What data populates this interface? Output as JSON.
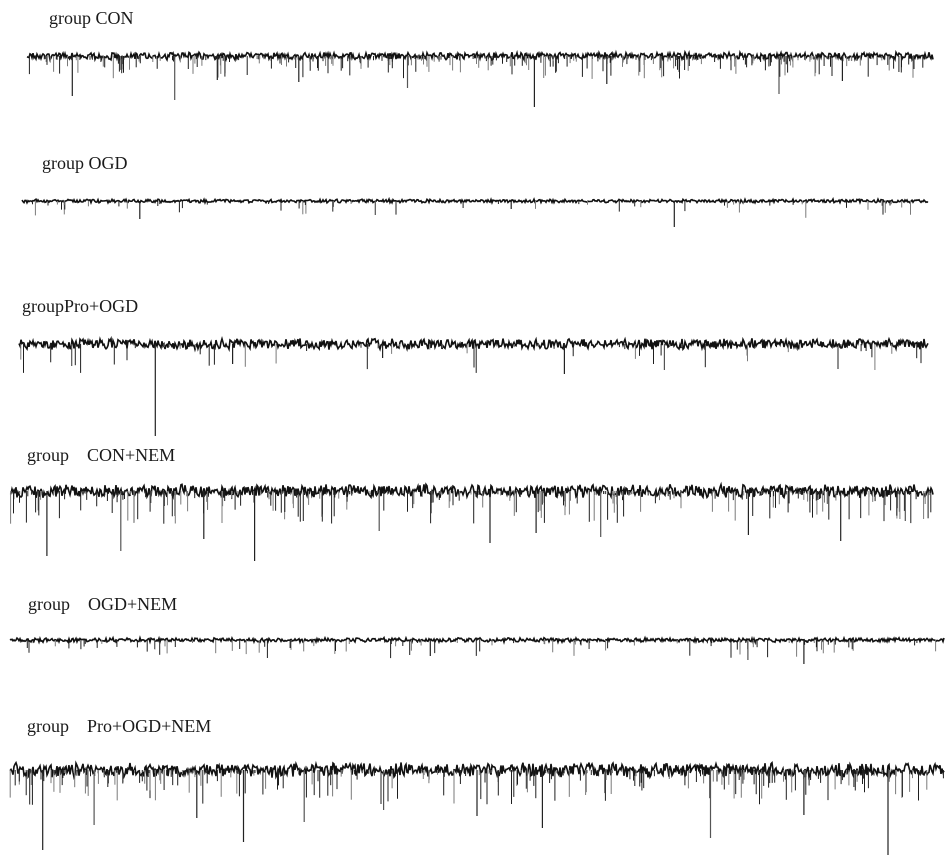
{
  "chart_data": {
    "type": "line",
    "background": "#ffffff",
    "trace_color": "#111111",
    "event_color": "#1f1f1f",
    "panels": [
      {
        "label": "group CON",
        "noise_amplitude": 3,
        "event_density": 0.34,
        "events": [
          {
            "x": 0.05,
            "amp": 40
          },
          {
            "x": 0.163,
            "amp": 44
          },
          {
            "x": 0.21,
            "amp": 24
          },
          {
            "x": 0.3,
            "amp": 26
          },
          {
            "x": 0.42,
            "amp": 32
          },
          {
            "x": 0.56,
            "amp": 51
          },
          {
            "x": 0.64,
            "amp": 28
          },
          {
            "x": 0.83,
            "amp": 38
          },
          {
            "x": 0.9,
            "amp": 25
          }
        ]
      },
      {
        "label": "group OGD",
        "noise_amplitude": 1.5,
        "event_density": 0.06,
        "events": [
          {
            "x": 0.13,
            "amp": 18
          },
          {
            "x": 0.39,
            "amp": 14
          },
          {
            "x": 0.72,
            "amp": 26
          },
          {
            "x": 0.54,
            "amp": 8
          }
        ]
      },
      {
        "label": "groupPro+OGD",
        "noise_amplitude": 4.5,
        "event_density": 0.07,
        "events": [
          {
            "x": 0.15,
            "amp": 92
          },
          {
            "x": 0.058,
            "amp": 22
          },
          {
            "x": 0.235,
            "amp": 20
          },
          {
            "x": 0.6,
            "amp": 30
          },
          {
            "x": 0.71,
            "amp": 26
          },
          {
            "x": 0.4,
            "amp": 14
          }
        ]
      },
      {
        "label": "group    CON+NEM",
        "noise_amplitude": 5.5,
        "event_density": 0.3,
        "events": [
          {
            "x": 0.04,
            "amp": 65
          },
          {
            "x": 0.12,
            "amp": 60
          },
          {
            "x": 0.265,
            "amp": 70
          },
          {
            "x": 0.21,
            "amp": 48
          },
          {
            "x": 0.4,
            "amp": 40
          },
          {
            "x": 0.52,
            "amp": 52
          },
          {
            "x": 0.57,
            "amp": 42
          },
          {
            "x": 0.64,
            "amp": 46
          },
          {
            "x": 0.8,
            "amp": 44
          },
          {
            "x": 0.9,
            "amp": 50
          },
          {
            "x": 0.97,
            "amp": 30
          }
        ]
      },
      {
        "label": "group    OGD+NEM",
        "noise_amplitude": 1.8,
        "event_density": 0.1,
        "events": [
          {
            "x": 0.45,
            "amp": 16
          },
          {
            "x": 0.79,
            "amp": 20
          },
          {
            "x": 0.85,
            "amp": 24
          },
          {
            "x": 0.3,
            "amp": 8
          },
          {
            "x": 0.62,
            "amp": 9
          }
        ]
      },
      {
        "label": "group    Pro+OGD+NEM",
        "noise_amplitude": 6,
        "event_density": 0.3,
        "events": [
          {
            "x": 0.035,
            "amp": 80
          },
          {
            "x": 0.09,
            "amp": 55
          },
          {
            "x": 0.25,
            "amp": 72
          },
          {
            "x": 0.2,
            "amp": 48
          },
          {
            "x": 0.315,
            "amp": 52
          },
          {
            "x": 0.5,
            "amp": 46
          },
          {
            "x": 0.57,
            "amp": 58
          },
          {
            "x": 0.75,
            "amp": 68
          },
          {
            "x": 0.94,
            "amp": 88
          },
          {
            "x": 0.85,
            "amp": 45
          },
          {
            "x": 0.4,
            "amp": 40
          }
        ]
      }
    ]
  }
}
